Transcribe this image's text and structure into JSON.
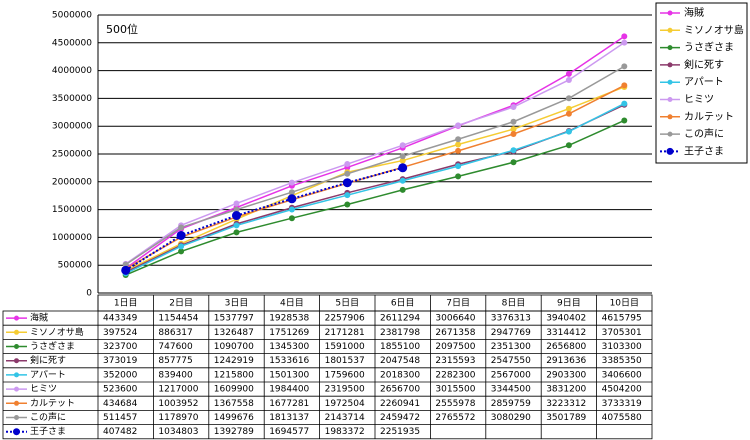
{
  "chart_data": {
    "type": "line",
    "annotation": "500位",
    "categories": [
      "1日目",
      "2日目",
      "3日目",
      "4日目",
      "5日目",
      "6日目",
      "7日目",
      "8日目",
      "9日目",
      "10日目"
    ],
    "ylim": [
      0,
      5000000
    ],
    "yticks": [
      0,
      500000,
      1000000,
      1500000,
      2000000,
      2500000,
      3000000,
      3500000,
      4000000,
      4500000,
      5000000
    ],
    "grid": true,
    "legend": "right",
    "series": [
      {
        "name": "海賊",
        "color": "#e633e6",
        "values": [
          443349,
          1154454,
          1537797,
          1928538,
          2257906,
          2611294,
          3006640,
          3376313,
          3940402,
          4615795
        ]
      },
      {
        "name": "ミソノオサ島",
        "color": "#f5cc33",
        "values": [
          397524,
          886317,
          1326487,
          1751269,
          2171281,
          2381798,
          2671358,
          2947769,
          3314412,
          3705301
        ]
      },
      {
        "name": "うさぎさま",
        "color": "#2e8b2e",
        "values": [
          323700,
          747600,
          1090700,
          1345300,
          1591000,
          1855100,
          2097500,
          2351300,
          2656800,
          3103300
        ]
      },
      {
        "name": "剣に死す",
        "color": "#8b3a6b",
        "values": [
          373019,
          857775,
          1242919,
          1533616,
          1801537,
          2047548,
          2315593,
          2547550,
          2913636,
          3385350
        ]
      },
      {
        "name": "アパート",
        "color": "#33c4e6",
        "values": [
          352000,
          839400,
          1215800,
          1501300,
          1759600,
          2018300,
          2282300,
          2567000,
          2903300,
          3406600
        ]
      },
      {
        "name": "ヒミツ",
        "color": "#cc99f0",
        "values": [
          523600,
          1217000,
          1609900,
          1984400,
          2319500,
          2656700,
          3015500,
          3344500,
          3831200,
          4504200
        ]
      },
      {
        "name": "カルテット",
        "color": "#f08030",
        "values": [
          434684,
          1003952,
          1367558,
          1677281,
          1972504,
          2260941,
          2555978,
          2859759,
          3223312,
          3733319
        ]
      },
      {
        "name": "この声に",
        "color": "#999999",
        "values": [
          511457,
          1178970,
          1499676,
          1813137,
          2143714,
          2459472,
          2765572,
          3080290,
          3501789,
          4075580
        ]
      },
      {
        "name": "王子さま",
        "color": "#0000cc",
        "dashed": true,
        "values": [
          407482,
          1034803,
          1392789,
          1694577,
          1983372,
          2251935,
          null,
          null,
          null,
          null
        ]
      }
    ]
  }
}
